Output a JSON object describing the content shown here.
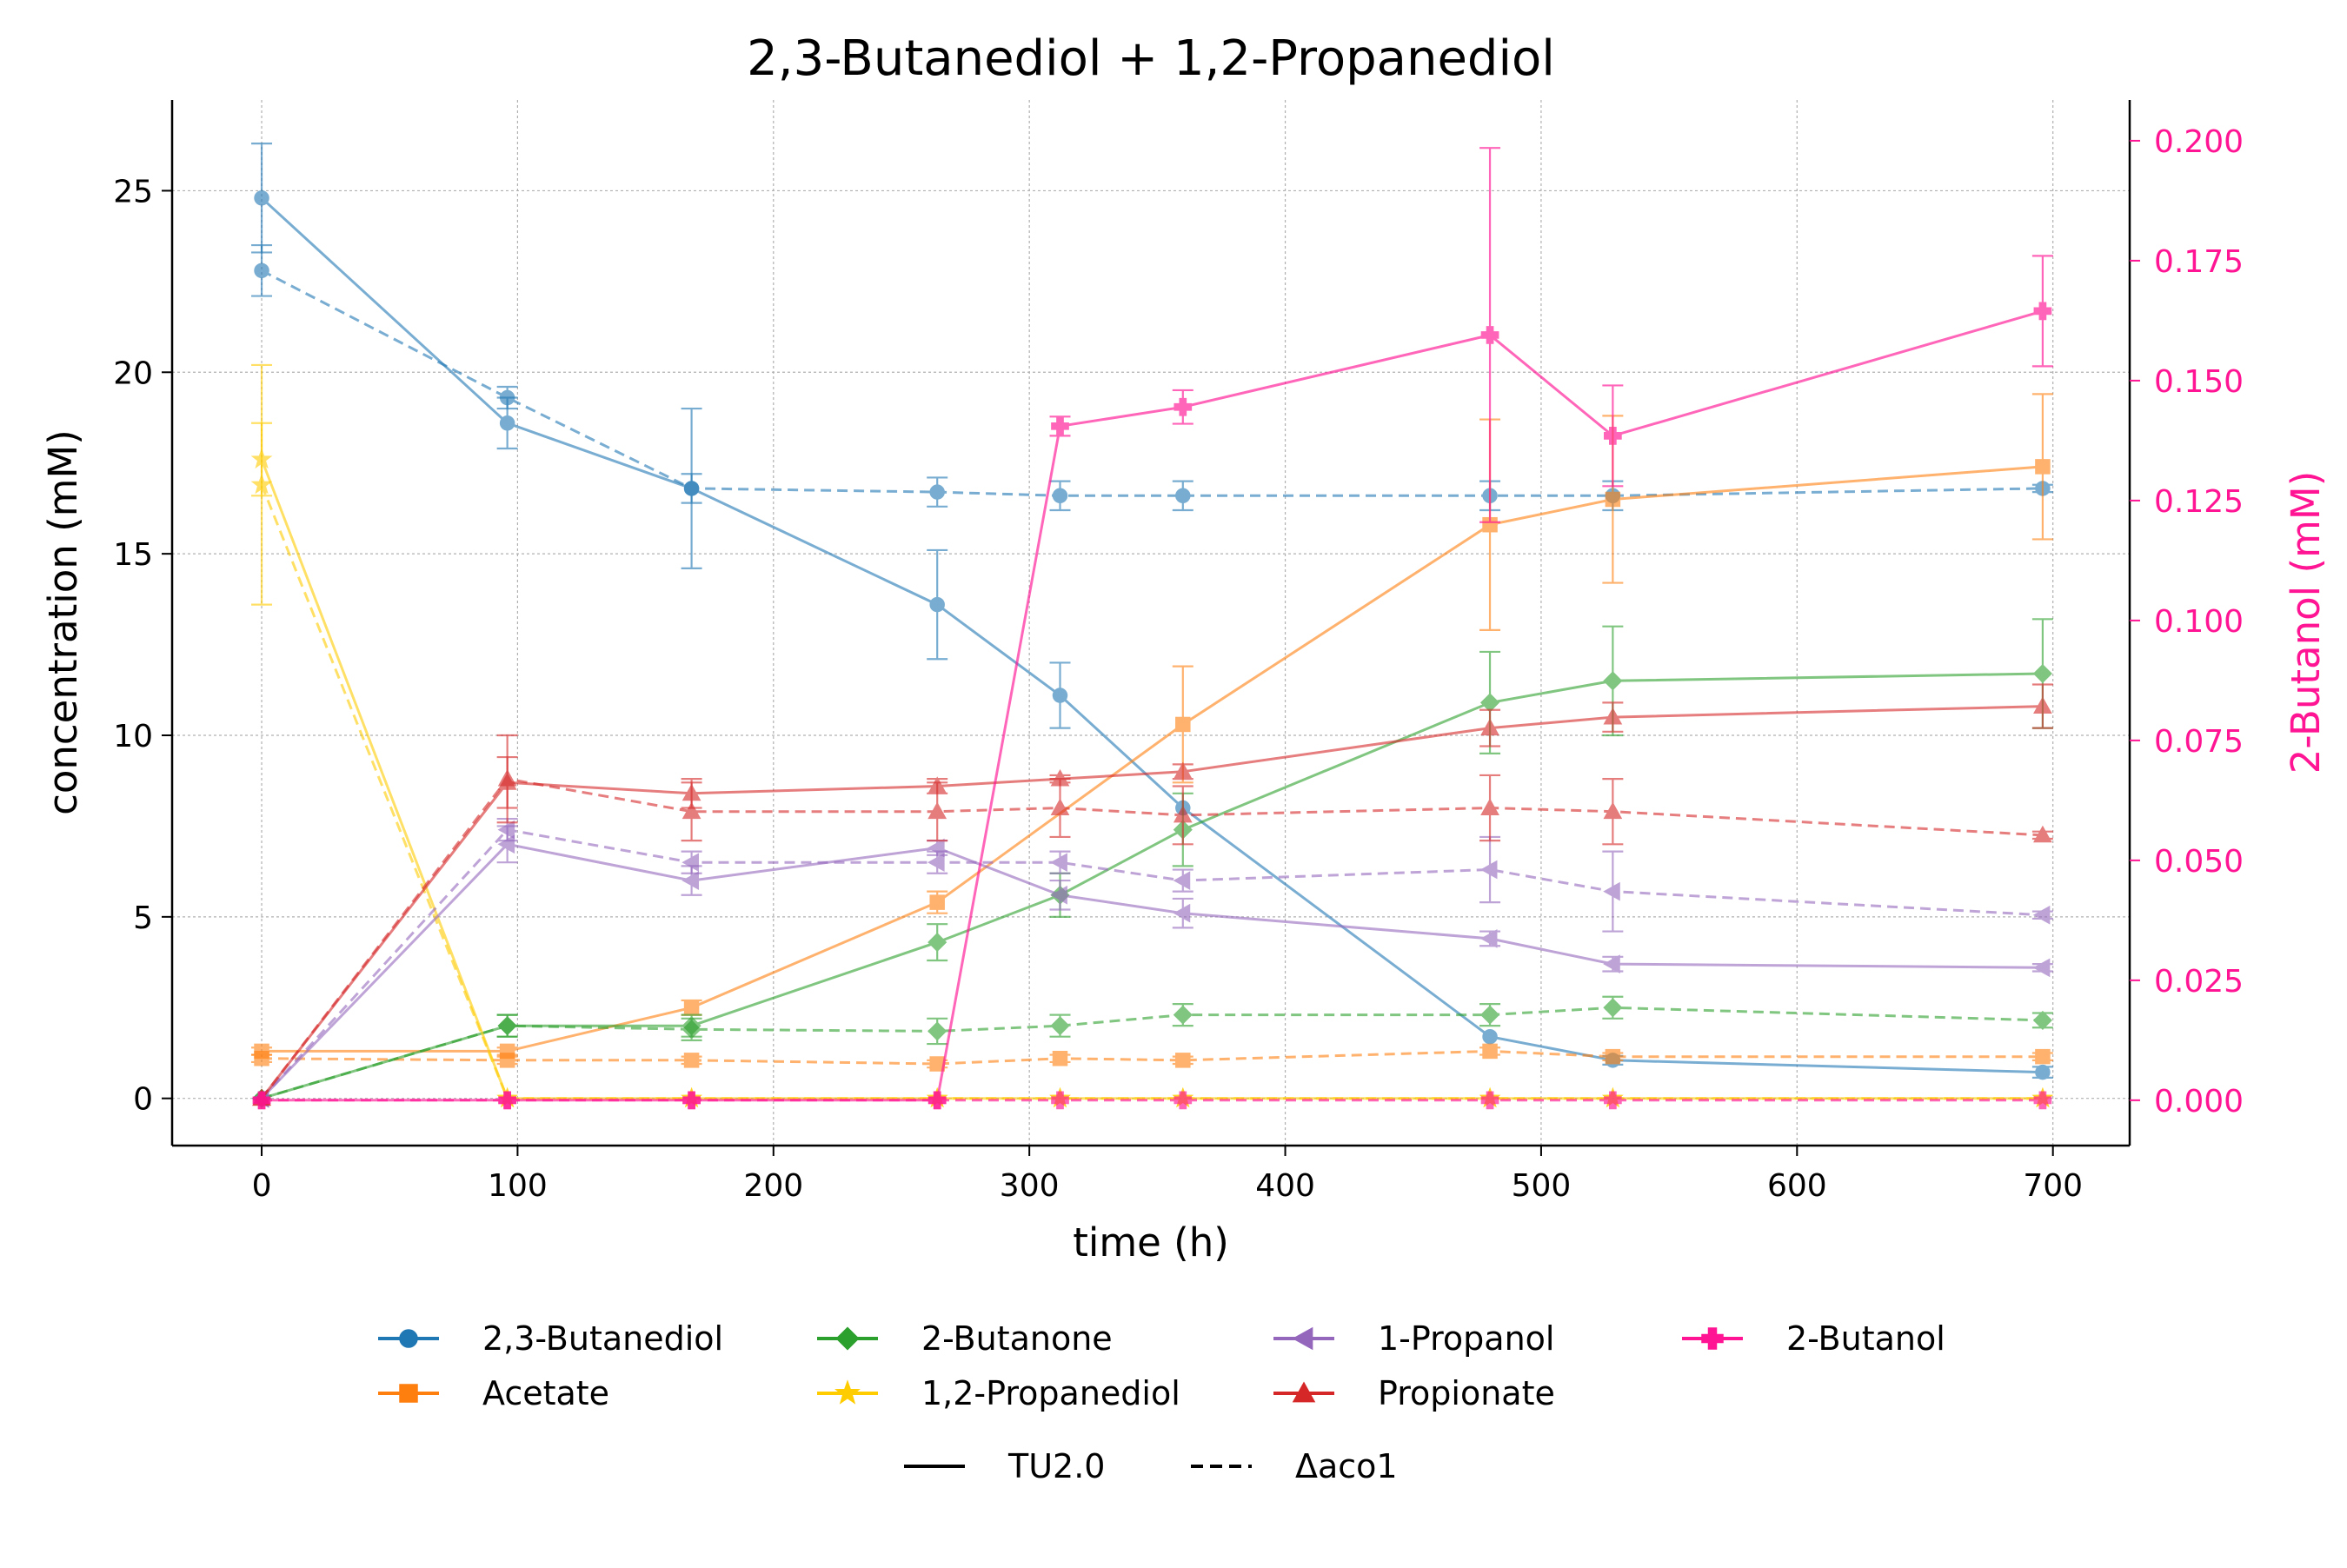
{
  "chart_data": {
    "type": "line",
    "title": "2,3-Butanediol + 1,2-Propanediol",
    "xlabel": "time (h)",
    "ylabel": "concentration (mM)",
    "y2label": "2-Butanol (mM)",
    "xlim": [
      -35,
      730
    ],
    "ylim": [
      -1.3,
      27.5
    ],
    "y2lim": [
      -0.00945,
      0.2085
    ],
    "xticks": [
      0,
      100,
      200,
      300,
      400,
      500,
      600,
      700
    ],
    "yticks": [
      0,
      5,
      10,
      15,
      20,
      25
    ],
    "y2ticks": [
      0.0,
      0.025,
      0.05,
      0.075,
      0.1,
      0.125,
      0.15,
      0.175,
      0.2
    ],
    "y2tick_labels": [
      "0.000",
      "0.025",
      "0.050",
      "0.075",
      "0.100",
      "0.125",
      "0.150",
      "0.175",
      "0.200"
    ],
    "grid": true,
    "legend_placement": "bottom-center",
    "colors": {
      "2,3-Butanediol": "#1f77b4",
      "Acetate": "#ff7f0e",
      "2-Butanone": "#2ca02c",
      "1,2-Propanediol": "#ffcc00",
      "1-Propanol": "#9467bd",
      "Propionate": "#d62728",
      "2-Butanol": "#ff1493",
      "secondary_axis": "#ff1493"
    },
    "style_legend": [
      {
        "name": "TU2.0",
        "dash": "solid"
      },
      {
        "name": "Δaco1",
        "dash": "dashed"
      }
    ],
    "series": [
      {
        "name": "2,3-Butanediol",
        "strain": "TU2.0",
        "marker": "circle",
        "axis": "left",
        "x": [
          0,
          96,
          168,
          264,
          312,
          360,
          480,
          528,
          696
        ],
        "y": [
          24.8,
          18.6,
          16.8,
          13.6,
          11.1,
          8.0,
          1.7,
          1.05,
          0.72
        ],
        "err": [
          1.5,
          0.7,
          2.2,
          1.5,
          0.9,
          0.0,
          0.0,
          0.12,
          0.15
        ]
      },
      {
        "name": "2,3-Butanediol",
        "strain": "Δaco1",
        "marker": "circle",
        "axis": "left",
        "x": [
          0,
          96,
          168,
          264,
          312,
          360,
          480,
          528,
          696
        ],
        "y": [
          22.8,
          19.3,
          16.8,
          16.7,
          16.6,
          16.6,
          16.6,
          16.6,
          16.8
        ],
        "err": [
          0.7,
          0.3,
          0.4,
          0.4,
          0.4,
          0.4,
          0.4,
          0.4,
          0.1
        ]
      },
      {
        "name": "Acetate",
        "strain": "TU2.0",
        "marker": "square",
        "axis": "left",
        "x": [
          0,
          96,
          168,
          264,
          360,
          480,
          528,
          696
        ],
        "y": [
          1.3,
          1.3,
          2.5,
          5.4,
          10.3,
          15.8,
          16.5,
          17.4
        ],
        "err": [
          0.1,
          0.1,
          0.2,
          0.3,
          1.6,
          2.9,
          2.3,
          2.0
        ]
      },
      {
        "name": "Acetate",
        "strain": "Δaco1",
        "marker": "square",
        "axis": "left",
        "x": [
          0,
          96,
          168,
          264,
          312,
          360,
          480,
          528,
          696
        ],
        "y": [
          1.1,
          1.05,
          1.05,
          0.95,
          1.1,
          1.05,
          1.3,
          1.15,
          1.15
        ],
        "err": [
          0.1,
          0.1,
          0.1,
          0.1,
          0.1,
          0.1,
          0.1,
          0.1,
          0.1
        ]
      },
      {
        "name": "2-Butanone",
        "strain": "TU2.0",
        "marker": "diamond",
        "axis": "left",
        "x": [
          0,
          96,
          168,
          264,
          312,
          360,
          480,
          528,
          696
        ],
        "y": [
          0.0,
          2.0,
          2.0,
          4.3,
          5.6,
          7.4,
          10.9,
          11.5,
          11.7
        ],
        "err": [
          0.0,
          0.3,
          0.3,
          0.5,
          0.6,
          1.0,
          1.4,
          1.5,
          1.5
        ]
      },
      {
        "name": "2-Butanone",
        "strain": "Δaco1",
        "marker": "diamond",
        "axis": "left",
        "x": [
          0,
          96,
          168,
          264,
          312,
          360,
          480,
          528,
          696
        ],
        "y": [
          0.0,
          2.0,
          1.9,
          1.85,
          2.0,
          2.3,
          2.3,
          2.5,
          2.15
        ],
        "err": [
          0.0,
          0.3,
          0.3,
          0.35,
          0.3,
          0.3,
          0.3,
          0.3,
          0.2
        ]
      },
      {
        "name": "1,2-Propanediol",
        "strain": "TU2.0",
        "marker": "star",
        "axis": "left",
        "x": [
          0,
          96,
          168,
          264,
          312,
          360,
          480,
          528,
          696
        ],
        "y": [
          17.6,
          0.0,
          0.0,
          0.0,
          0.0,
          0.0,
          0.0,
          0.0,
          0.0
        ],
        "err": [
          1.0,
          0,
          0,
          0,
          0,
          0,
          0,
          0,
          0
        ]
      },
      {
        "name": "1,2-Propanediol",
        "strain": "Δaco1",
        "marker": "star",
        "axis": "left",
        "x": [
          0,
          96,
          168,
          264,
          312,
          360,
          480,
          528,
          696
        ],
        "y": [
          16.9,
          0.0,
          0.0,
          0.0,
          0.0,
          0.0,
          0.0,
          0.0,
          0.0
        ],
        "err": [
          3.3,
          0,
          0,
          0,
          0,
          0,
          0,
          0,
          0
        ]
      },
      {
        "name": "1-Propanol",
        "strain": "TU2.0",
        "marker": "triangle-left",
        "axis": "left",
        "x": [
          0,
          96,
          168,
          264,
          312,
          360,
          480,
          528,
          696
        ],
        "y": [
          0.0,
          7.0,
          6.0,
          6.9,
          5.6,
          5.1,
          4.4,
          3.7,
          3.6
        ],
        "err": [
          0.0,
          0.5,
          0.4,
          0.2,
          0.4,
          0.4,
          0.2,
          0.2,
          0.1
        ]
      },
      {
        "name": "1-Propanol",
        "strain": "Δaco1",
        "marker": "triangle-left",
        "axis": "left",
        "x": [
          0,
          96,
          168,
          264,
          312,
          360,
          480,
          528,
          696
        ],
        "y": [
          0.0,
          7.4,
          6.5,
          6.5,
          6.5,
          6.0,
          6.3,
          5.7,
          5.05
        ],
        "err": [
          0.0,
          0.3,
          0.3,
          0.3,
          0.3,
          0.3,
          0.9,
          1.1,
          0.1
        ]
      },
      {
        "name": "Propionate",
        "strain": "TU2.0",
        "marker": "triangle-up",
        "axis": "left",
        "x": [
          0,
          96,
          168,
          264,
          312,
          360,
          480,
          528,
          696
        ],
        "y": [
          0.0,
          8.7,
          8.4,
          8.6,
          8.8,
          9.0,
          10.2,
          10.5,
          10.8
        ],
        "err": [
          0.0,
          0.7,
          0.4,
          0.2,
          0.1,
          0.2,
          0.5,
          0.4,
          0.6
        ]
      },
      {
        "name": "Propionate",
        "strain": "Δaco1",
        "marker": "triangle-up",
        "axis": "left",
        "x": [
          0,
          96,
          168,
          264,
          312,
          360,
          480,
          528,
          696
        ],
        "y": [
          0.0,
          8.8,
          7.9,
          7.9,
          8.0,
          7.8,
          8.0,
          7.9,
          7.25
        ],
        "err": [
          0.0,
          1.2,
          0.8,
          0.8,
          0.8,
          0.8,
          0.9,
          0.9,
          0.1
        ]
      },
      {
        "name": "2-Butanol",
        "strain": "TU2.0",
        "marker": "plus",
        "axis": "right",
        "x": [
          0,
          96,
          168,
          264,
          312,
          360,
          480,
          528,
          696
        ],
        "y": [
          0.0,
          0.0,
          0.0,
          0.0,
          0.1405,
          0.1445,
          0.1595,
          0.1385,
          0.1645
        ],
        "err": [
          0,
          0,
          0,
          0,
          0.002,
          0.0035,
          0.039,
          0.0105,
          0.0115
        ]
      },
      {
        "name": "2-Butanol",
        "strain": "Δaco1",
        "marker": "plus",
        "axis": "right",
        "x": [
          0,
          96,
          168,
          264,
          312,
          360,
          480,
          528,
          696
        ],
        "y": [
          0.0,
          0.0,
          0.0,
          0.0,
          0.0,
          0.0,
          0.0,
          0.0,
          0.0
        ],
        "err": [
          0,
          0,
          0,
          0,
          0,
          0,
          0,
          0,
          0
        ]
      }
    ],
    "legend": [
      "2,3-Butanediol",
      "Acetate",
      "2-Butanone",
      "1,2-Propanediol",
      "1-Propanol",
      "Propionate",
      "2-Butanol"
    ]
  }
}
